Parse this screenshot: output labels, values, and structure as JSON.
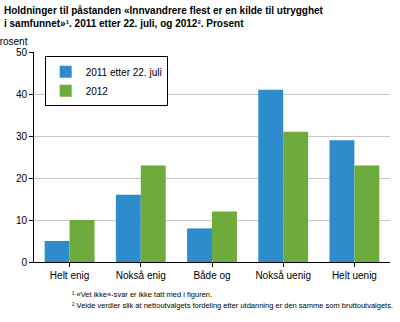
{
  "chart_data": {
    "type": "bar",
    "title": "Holdninger til påstanden «Innvandrere flest er en kilde til utrygghet i samfunnet»¹. 2011 etter 22. juli, og 2012². Prosent",
    "ylabel": "Prosent",
    "categories": [
      "Helt enig",
      "Nokså enig",
      "Både og",
      "Nokså uenig",
      "Helt uenig"
    ],
    "series": [
      {
        "name": "2011 etter 22. juli",
        "color": "#2f8ccc",
        "values": [
          5,
          16,
          8,
          41,
          29
        ]
      },
      {
        "name": "2012",
        "color": "#6cab3c",
        "values": [
          10,
          23,
          12,
          31,
          23
        ]
      }
    ],
    "ylim": [
      0,
      50
    ],
    "yticks": [
      0,
      10,
      20,
      30,
      40,
      50
    ],
    "grid": true,
    "legend": "top-left",
    "notes": [
      "¹ «Vet ikke»-svar er ikke tatt med i figuren.",
      "² Veide verdier slik at nettoutvalgets fordeling etter utdanning er den samme som bruttoutvalgets."
    ]
  }
}
